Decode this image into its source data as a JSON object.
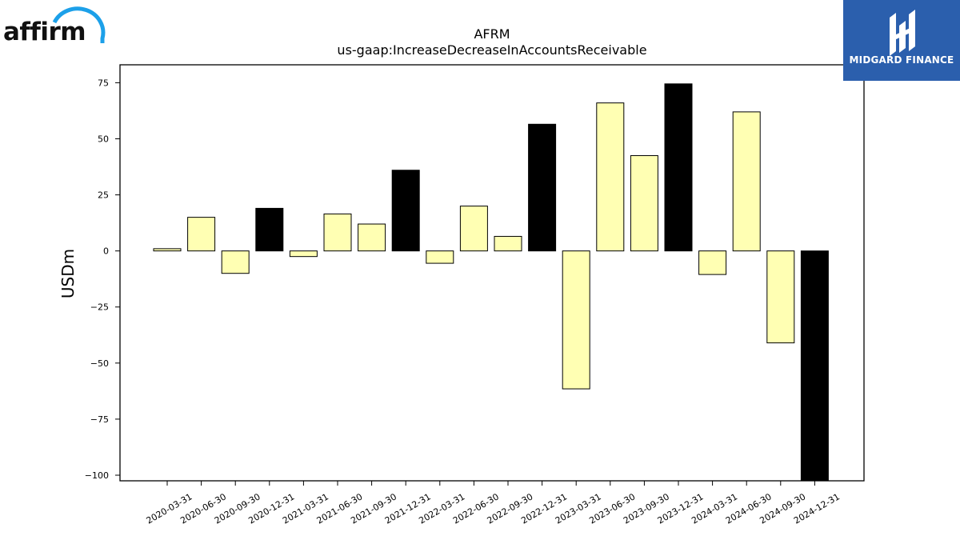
{
  "logos": {
    "left": {
      "name": "affirm",
      "text": "affirm",
      "arc_color": "#1ca0e9"
    },
    "right": {
      "name": "Midgard Finance",
      "text": "MIDGARD FINANCE",
      "bg_color": "#2b5fad"
    }
  },
  "chart_data": {
    "type": "bar",
    "title": "AFRM",
    "subtitle": "us-gaap:IncreaseDecreaseInAccountsReceivable",
    "xlabel": "",
    "ylabel": "USDm",
    "ylim": [
      -102.5,
      83
    ],
    "yticks": [
      75,
      50,
      25,
      0,
      -25,
      -50,
      -75,
      -100
    ],
    "ytick_labels": [
      "75",
      "50",
      "25",
      "0",
      "−25",
      "−50",
      "−75",
      "−100"
    ],
    "grid": false,
    "legend": "none",
    "categories": [
      "2020-03-31",
      "2020-06-30",
      "2020-09-30",
      "2020-12-31",
      "2021-03-31",
      "2021-06-30",
      "2021-09-30",
      "2021-12-31",
      "2022-03-31",
      "2022-06-30",
      "2022-09-30",
      "2022-12-31",
      "2023-03-31",
      "2023-06-30",
      "2023-09-30",
      "2023-12-31",
      "2024-03-31",
      "2024-06-30",
      "2024-09-30",
      "2024-12-31"
    ],
    "values": [
      1,
      15,
      -10,
      19,
      -2.5,
      16.5,
      12,
      36,
      -5.5,
      20,
      6.5,
      56.5,
      -61.5,
      66,
      42.5,
      74.5,
      -10.5,
      62,
      -41,
      -103
    ],
    "bar_colors": [
      "#ffffb3",
      "#ffffb3",
      "#ffffb3",
      "#000000",
      "#ffffb3",
      "#ffffb3",
      "#ffffb3",
      "#000000",
      "#ffffb3",
      "#ffffb3",
      "#ffffb3",
      "#000000",
      "#ffffb3",
      "#ffffb3",
      "#ffffb3",
      "#000000",
      "#ffffb3",
      "#ffffb3",
      "#ffffb3",
      "#000000"
    ],
    "colors": {
      "quarterly": "#ffffb3",
      "year_end": "#000000",
      "edge": "#000000"
    }
  }
}
